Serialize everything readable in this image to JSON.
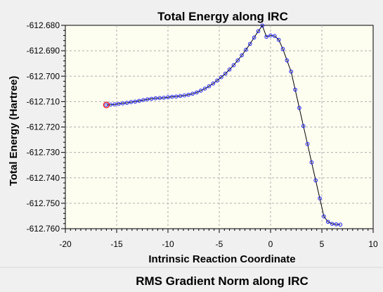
{
  "colors": {
    "plot_bg": "#fdfdf0",
    "window_bg": "#f0f0f0",
    "grid": "#b0b0b0",
    "series_line": "#000000",
    "marker": "#2020ff",
    "highlight_marker": "#ff0000"
  },
  "bottom_panel": {
    "title": "RMS Gradient Norm along IRC"
  },
  "chart_data": {
    "type": "line",
    "title": "Total Energy along IRC",
    "xlabel": "Intrinsic Reaction Coordinate",
    "ylabel": "Total Energy (Hartree)",
    "xlim": [
      -20,
      10
    ],
    "ylim": [
      -612.76,
      -612.68
    ],
    "xticks": [
      "-20",
      "-15",
      "-10",
      "-5",
      "0",
      "5",
      "10"
    ],
    "yticks": [
      "-612.680",
      "-612.690",
      "-612.700",
      "-612.710",
      "-612.720",
      "-612.730",
      "-612.740",
      "-612.750",
      "-612.760"
    ],
    "grid": true,
    "highlighted_point_index": 0,
    "series": [
      {
        "x": [
          -16.0,
          -15.6,
          -15.2,
          -14.8,
          -14.4,
          -14.0,
          -13.6,
          -13.2,
          -12.8,
          -12.4,
          -12.0,
          -11.6,
          -11.2,
          -10.8,
          -10.4,
          -10.0,
          -9.6,
          -9.2,
          -8.8,
          -8.4,
          -8.0,
          -7.6,
          -7.2,
          -6.8,
          -6.4,
          -6.0,
          -5.6,
          -5.2,
          -4.8,
          -4.4,
          -4.0,
          -3.6,
          -3.2,
          -2.8,
          -2.4,
          -2.0,
          -1.6,
          -1.2,
          -0.8,
          -0.4,
          0.0,
          0.4,
          0.8,
          1.2,
          1.6,
          2.0,
          2.4,
          2.8,
          3.2,
          3.6,
          4.0,
          4.4,
          4.8,
          5.2,
          5.6,
          6.0,
          6.4,
          6.8
        ],
        "y": [
          -612.7113,
          -612.7112,
          -612.7111,
          -612.7109,
          -612.7107,
          -612.7105,
          -612.7102,
          -612.71,
          -612.7097,
          -612.7094,
          -612.7091,
          -612.7089,
          -612.7087,
          -612.7086,
          -612.7085,
          -612.7083,
          -612.7081,
          -612.708,
          -612.7078,
          -612.7076,
          -612.7073,
          -612.7069,
          -612.7064,
          -612.7057,
          -612.7049,
          -612.704,
          -612.7029,
          -612.7017,
          -612.7004,
          -612.699,
          -612.6974,
          -612.6957,
          -612.6938,
          -612.6918,
          -612.6896,
          -612.6873,
          -612.6848,
          -612.6823,
          -612.6801,
          -612.6845,
          -612.684,
          -612.6842,
          -612.6857,
          -612.6893,
          -612.6938,
          -612.6982,
          -612.7053,
          -612.7125,
          -612.7196,
          -612.7267,
          -612.7339,
          -612.741,
          -612.7481,
          -612.7552,
          -612.7573,
          -612.7581,
          -612.7583,
          -612.7584
        ]
      }
    ]
  }
}
